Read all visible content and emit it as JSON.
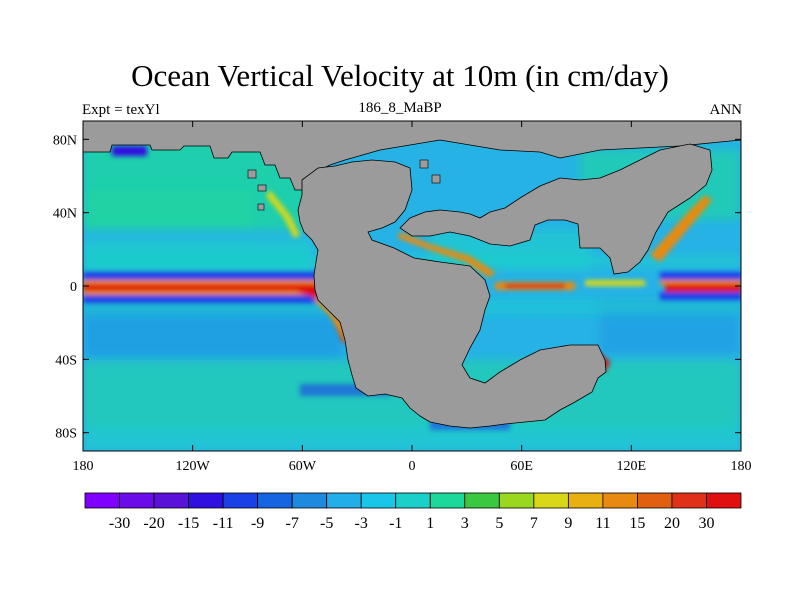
{
  "title": "Ocean Vertical Velocity at 10m (in cm/day)",
  "left_label": "Expt = texYl",
  "center_label": "186_8_MaBP",
  "right_label": "ANN",
  "lat_ticks": [
    {
      "value": 80,
      "label": "80N"
    },
    {
      "value": 40,
      "label": "40N"
    },
    {
      "value": 0,
      "label": "0"
    },
    {
      "value": -40,
      "label": "40S"
    },
    {
      "value": -80,
      "label": "80S"
    }
  ],
  "lon_ticks": [
    {
      "value": -180,
      "label": "180"
    },
    {
      "value": -120,
      "label": "120W"
    },
    {
      "value": -60,
      "label": "60W"
    },
    {
      "value": 0,
      "label": "0"
    },
    {
      "value": 60,
      "label": "60E"
    },
    {
      "value": 120,
      "label": "120E"
    },
    {
      "value": 180,
      "label": "180"
    }
  ],
  "colorbar": {
    "colors": [
      "#7f00ff",
      "#6a0be8",
      "#5a12d9",
      "#3010e0",
      "#1a40e8",
      "#1565e0",
      "#1d8ae0",
      "#22aee8",
      "#19c5e8",
      "#1ad0c8",
      "#1cd89a",
      "#3ac840",
      "#9ad820",
      "#d8d818",
      "#e8b010",
      "#e88a10",
      "#e06010",
      "#e03018",
      "#e01010"
    ],
    "labels": [
      "-30",
      "-20",
      "-15",
      "-11",
      "-9",
      "-7",
      "-5",
      "-3",
      "-1",
      "1",
      "3",
      "5",
      "7",
      "9",
      "11",
      "15",
      "20",
      "30"
    ]
  },
  "palette": {
    "land": "#9b9b9b",
    "ocean_background": "#27b2e6",
    "upwelling_strong": "#e01010",
    "downwelling_strong": "#3010e0"
  }
}
